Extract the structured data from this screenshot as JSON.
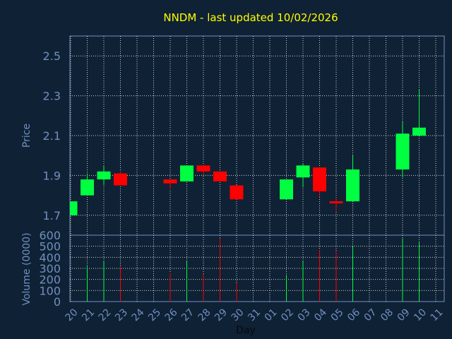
{
  "chart_data": {
    "type": "candlestick",
    "title": "NNDM - last updated 10/02/2026",
    "xlabel": "Day",
    "price_ylabel": "Price",
    "volume_ylabel": "Volume (0000)",
    "grid": true,
    "price_ylim": [
      1.6,
      2.6
    ],
    "price_ticks": [
      "2.5",
      "2.3",
      "2.1",
      "1.9",
      "1.7"
    ],
    "volume_ylim": [
      0,
      600
    ],
    "volume_ticks": [
      "600",
      "500",
      "400",
      "300",
      "200",
      "100",
      "0"
    ],
    "x_ticks": [
      "20",
      "21",
      "22",
      "23",
      "24",
      "25",
      "26",
      "27",
      "28",
      "29",
      "30",
      "31",
      "01",
      "02",
      "03",
      "04",
      "05",
      "06",
      "07",
      "08",
      "09",
      "10",
      "11"
    ],
    "candles": [
      {
        "x": 0,
        "open": 1.7,
        "close": 1.77,
        "high": 1.77,
        "low": 1.7,
        "volume": 0
      },
      {
        "x": 1,
        "open": 1.8,
        "close": 1.88,
        "high": 1.91,
        "low": 1.8,
        "volume": 320
      },
      {
        "x": 2,
        "open": 1.88,
        "close": 1.92,
        "high": 1.95,
        "low": 1.85,
        "volume": 370
      },
      {
        "x": 3,
        "open": 1.91,
        "close": 1.85,
        "high": 1.92,
        "low": 1.85,
        "volume": 320
      },
      {
        "x": 6,
        "open": 1.88,
        "close": 1.86,
        "high": 1.88,
        "low": 1.83,
        "volume": 255
      },
      {
        "x": 7,
        "open": 1.87,
        "close": 1.95,
        "high": 1.95,
        "low": 1.87,
        "volume": 365
      },
      {
        "x": 8,
        "open": 1.95,
        "close": 1.92,
        "high": 1.95,
        "low": 1.9,
        "volume": 250
      },
      {
        "x": 9,
        "open": 1.92,
        "close": 1.87,
        "high": 1.92,
        "low": 1.87,
        "volume": 575
      },
      {
        "x": 10,
        "open": 1.85,
        "close": 1.78,
        "high": 1.85,
        "low": 1.78,
        "volume": 170
      },
      {
        "x": 13,
        "open": 1.78,
        "close": 1.88,
        "high": 1.88,
        "low": 1.78,
        "volume": 240
      },
      {
        "x": 14,
        "open": 1.89,
        "close": 1.95,
        "high": 1.96,
        "low": 1.84,
        "volume": 365
      },
      {
        "x": 15,
        "open": 1.94,
        "close": 1.82,
        "high": 1.94,
        "low": 1.79,
        "volume": 465
      },
      {
        "x": 16,
        "open": 1.77,
        "close": 1.76,
        "high": 1.79,
        "low": 1.72,
        "volume": 455
      },
      {
        "x": 17,
        "open": 1.77,
        "close": 1.93,
        "high": 2.0,
        "low": 1.77,
        "volume": 500
      },
      {
        "x": 20,
        "open": 1.93,
        "close": 2.11,
        "high": 2.17,
        "low": 1.89,
        "volume": 570
      },
      {
        "x": 21,
        "open": 2.1,
        "close": 2.14,
        "high": 2.33,
        "low": 2.1,
        "volume": 535
      }
    ],
    "colors": {
      "background": "#0f2134",
      "up": "#00ff40",
      "down": "#ff0000",
      "title": "#ffff00",
      "axis_text": "#7090c0",
      "grid": "#ffffff",
      "frame": "#7090c0"
    }
  }
}
